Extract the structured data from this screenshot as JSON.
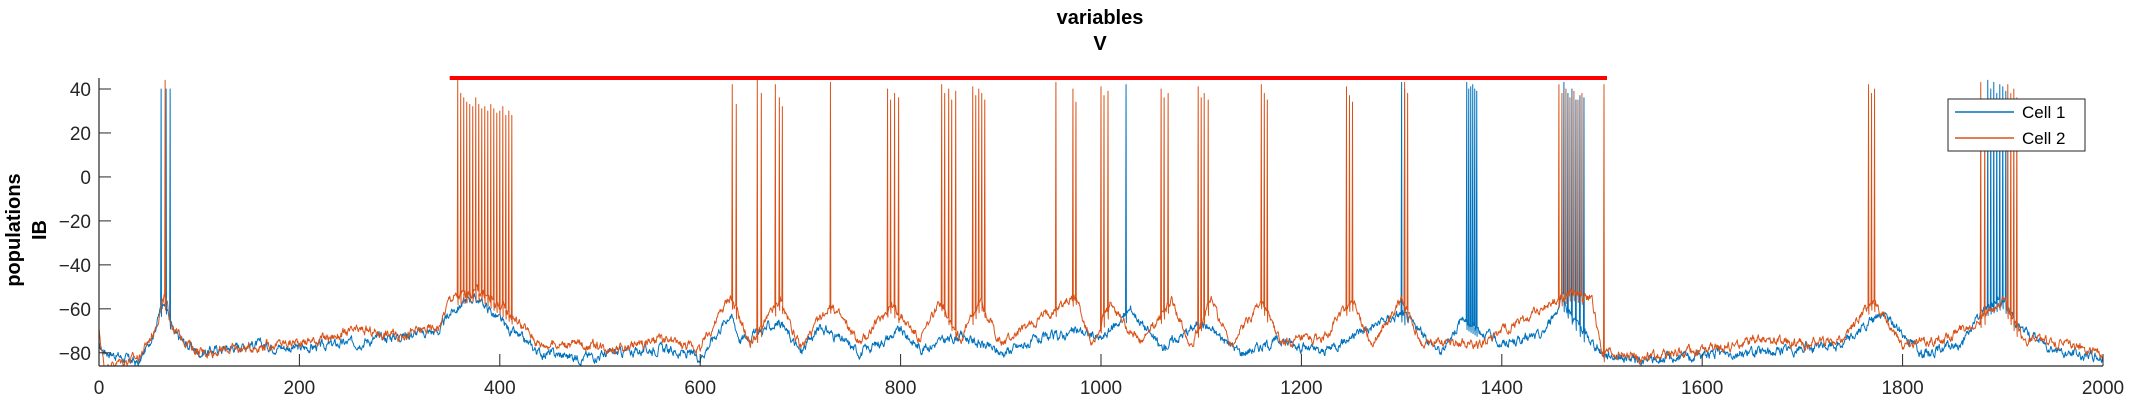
{
  "chart_data": {
    "type": "line",
    "title": [
      "variables",
      "V"
    ],
    "ylabel": [
      "populations",
      "IB"
    ],
    "xlabel": "",
    "xlim": [
      0,
      2000
    ],
    "ylim": [
      -86,
      45
    ],
    "xticks": [
      0,
      200,
      400,
      600,
      800,
      1000,
      1200,
      1400,
      1600,
      1800,
      2000
    ],
    "yticks": [
      -80,
      -60,
      -40,
      -20,
      0,
      20,
      40
    ],
    "grid": false,
    "legend_position": "top-right",
    "series": [
      {
        "name": "Cell 1",
        "color": "#0072BD",
        "baseline": [
          [
            0,
            -78
          ],
          [
            40,
            -85
          ],
          [
            55,
            -70
          ],
          [
            65,
            -55
          ],
          [
            75,
            -72
          ],
          [
            100,
            -80
          ],
          [
            150,
            -76
          ],
          [
            200,
            -78
          ],
          [
            260,
            -75
          ],
          [
            300,
            -72
          ],
          [
            340,
            -70
          ],
          [
            350,
            -62
          ],
          [
            370,
            -55
          ],
          [
            380,
            -56
          ],
          [
            410,
            -70
          ],
          [
            440,
            -80
          ],
          [
            480,
            -82
          ],
          [
            520,
            -80
          ],
          [
            560,
            -78
          ],
          [
            600,
            -82
          ],
          [
            630,
            -62
          ],
          [
            640,
            -74
          ],
          [
            680,
            -66
          ],
          [
            700,
            -80
          ],
          [
            720,
            -68
          ],
          [
            760,
            -80
          ],
          [
            800,
            -70
          ],
          [
            820,
            -78
          ],
          [
            860,
            -72
          ],
          [
            900,
            -80
          ],
          [
            940,
            -74
          ],
          [
            980,
            -70
          ],
          [
            1000,
            -74
          ],
          [
            1030,
            -60
          ],
          [
            1060,
            -78
          ],
          [
            1100,
            -66
          ],
          [
            1140,
            -80
          ],
          [
            1180,
            -74
          ],
          [
            1220,
            -80
          ],
          [
            1260,
            -70
          ],
          [
            1300,
            -62
          ],
          [
            1340,
            -80
          ],
          [
            1360,
            -64
          ],
          [
            1400,
            -76
          ],
          [
            1440,
            -72
          ],
          [
            1460,
            -56
          ],
          [
            1480,
            -70
          ],
          [
            1500,
            -80
          ],
          [
            1540,
            -84
          ],
          [
            1580,
            -82
          ],
          [
            1620,
            -80
          ],
          [
            1660,
            -80
          ],
          [
            1700,
            -78
          ],
          [
            1740,
            -76
          ],
          [
            1780,
            -62
          ],
          [
            1820,
            -80
          ],
          [
            1860,
            -76
          ],
          [
            1880,
            -60
          ],
          [
            1900,
            -56
          ],
          [
            1920,
            -70
          ],
          [
            1960,
            -80
          ],
          [
            2000,
            -82
          ]
        ],
        "spikes": [
          [
            62,
            40
          ],
          [
            67,
            40
          ],
          [
            71,
            40
          ],
          [
            1025,
            42
          ],
          [
            1300,
            43
          ],
          [
            1303,
            40
          ],
          [
            1365,
            43
          ],
          [
            1367,
            40
          ],
          [
            1369,
            41
          ],
          [
            1371,
            42
          ],
          [
            1373,
            40
          ],
          [
            1375,
            39
          ],
          [
            1462,
            43
          ],
          [
            1466,
            38
          ],
          [
            1470,
            40
          ],
          [
            1474,
            35
          ],
          [
            1478,
            37
          ],
          [
            1482,
            36
          ],
          [
            1885,
            44
          ],
          [
            1888,
            40
          ],
          [
            1891,
            43
          ],
          [
            1894,
            38
          ],
          [
            1897,
            42
          ],
          [
            1900,
            41
          ],
          [
            1903,
            39
          ]
        ]
      },
      {
        "name": "Cell 2",
        "color": "#D95319",
        "baseline": [
          [
            0,
            -70
          ],
          [
            5,
            -86
          ],
          [
            40,
            -82
          ],
          [
            55,
            -70
          ],
          [
            65,
            -55
          ],
          [
            75,
            -70
          ],
          [
            100,
            -80
          ],
          [
            140,
            -78
          ],
          [
            180,
            -76
          ],
          [
            220,
            -74
          ],
          [
            260,
            -70
          ],
          [
            300,
            -72
          ],
          [
            340,
            -68
          ],
          [
            350,
            -55
          ],
          [
            380,
            -52
          ],
          [
            410,
            -62
          ],
          [
            440,
            -76
          ],
          [
            480,
            -76
          ],
          [
            520,
            -78
          ],
          [
            560,
            -74
          ],
          [
            600,
            -78
          ],
          [
            630,
            -54
          ],
          [
            650,
            -76
          ],
          [
            680,
            -56
          ],
          [
            700,
            -78
          ],
          [
            730,
            -58
          ],
          [
            760,
            -76
          ],
          [
            790,
            -58
          ],
          [
            820,
            -74
          ],
          [
            840,
            -56
          ],
          [
            860,
            -74
          ],
          [
            880,
            -56
          ],
          [
            900,
            -76
          ],
          [
            960,
            -58
          ],
          [
            975,
            -54
          ],
          [
            990,
            -76
          ],
          [
            1010,
            -58
          ],
          [
            1040,
            -76
          ],
          [
            1070,
            -56
          ],
          [
            1090,
            -76
          ],
          [
            1110,
            -56
          ],
          [
            1130,
            -76
          ],
          [
            1160,
            -56
          ],
          [
            1180,
            -76
          ],
          [
            1220,
            -74
          ],
          [
            1250,
            -56
          ],
          [
            1270,
            -76
          ],
          [
            1300,
            -56
          ],
          [
            1320,
            -76
          ],
          [
            1340,
            -74
          ],
          [
            1380,
            -76
          ],
          [
            1440,
            -60
          ],
          [
            1470,
            -52
          ],
          [
            1490,
            -56
          ],
          [
            1500,
            -80
          ],
          [
            1540,
            -82
          ],
          [
            1580,
            -80
          ],
          [
            1620,
            -78
          ],
          [
            1660,
            -74
          ],
          [
            1700,
            -76
          ],
          [
            1740,
            -74
          ],
          [
            1770,
            -56
          ],
          [
            1800,
            -76
          ],
          [
            1840,
            -74
          ],
          [
            1880,
            -64
          ],
          [
            1900,
            -56
          ],
          [
            1920,
            -74
          ],
          [
            1960,
            -76
          ],
          [
            2000,
            -80
          ]
        ],
        "spikes": [
          [
            66,
            44
          ],
          [
            358,
            44
          ],
          [
            361,
            38
          ],
          [
            364,
            36
          ],
          [
            367,
            34
          ],
          [
            370,
            33
          ],
          [
            373,
            32
          ],
          [
            376,
            36
          ],
          [
            379,
            33
          ],
          [
            382,
            31
          ],
          [
            385,
            32
          ],
          [
            388,
            30
          ],
          [
            391,
            33
          ],
          [
            394,
            31
          ],
          [
            397,
            29
          ],
          [
            400,
            30
          ],
          [
            403,
            32
          ],
          [
            406,
            28
          ],
          [
            409,
            30
          ],
          [
            412,
            28
          ],
          [
            632,
            42
          ],
          [
            636,
            33
          ],
          [
            657,
            44
          ],
          [
            661,
            38
          ],
          [
            675,
            42
          ],
          [
            679,
            36
          ],
          [
            682,
            32
          ],
          [
            730,
            43
          ],
          [
            787,
            40
          ],
          [
            790,
            35
          ],
          [
            794,
            38
          ],
          [
            798,
            36
          ],
          [
            841,
            42
          ],
          [
            844,
            38
          ],
          [
            848,
            40
          ],
          [
            851,
            35
          ],
          [
            855,
            39
          ],
          [
            872,
            41
          ],
          [
            875,
            37
          ],
          [
            878,
            40
          ],
          [
            881,
            38
          ],
          [
            884,
            35
          ],
          [
            955,
            43
          ],
          [
            972,
            40
          ],
          [
            975,
            34
          ],
          [
            1000,
            41
          ],
          [
            1003,
            37
          ],
          [
            1007,
            39
          ],
          [
            1060,
            40
          ],
          [
            1063,
            36
          ],
          [
            1067,
            38
          ],
          [
            1097,
            41
          ],
          [
            1100,
            36
          ],
          [
            1103,
            38
          ],
          [
            1107,
            35
          ],
          [
            1160,
            42
          ],
          [
            1163,
            38
          ],
          [
            1166,
            35
          ],
          [
            1245,
            41
          ],
          [
            1248,
            37
          ],
          [
            1251,
            34
          ],
          [
            1303,
            43
          ],
          [
            1306,
            38
          ],
          [
            1457,
            42
          ],
          [
            1460,
            38
          ],
          [
            1464,
            40
          ],
          [
            1468,
            36
          ],
          [
            1472,
            39
          ],
          [
            1476,
            35
          ],
          [
            1480,
            38
          ],
          [
            1502,
            42
          ],
          [
            1766,
            42
          ],
          [
            1769,
            38
          ],
          [
            1772,
            40
          ],
          [
            1878,
            43
          ],
          [
            1882,
            35
          ],
          [
            1905,
            42
          ],
          [
            1908,
            38
          ],
          [
            1911,
            40
          ],
          [
            1914,
            36
          ]
        ]
      }
    ],
    "annotation": {
      "type": "horizontal-bar",
      "color": "#FF0000",
      "x_start": 350,
      "x_end": 1505,
      "y": 45
    }
  }
}
